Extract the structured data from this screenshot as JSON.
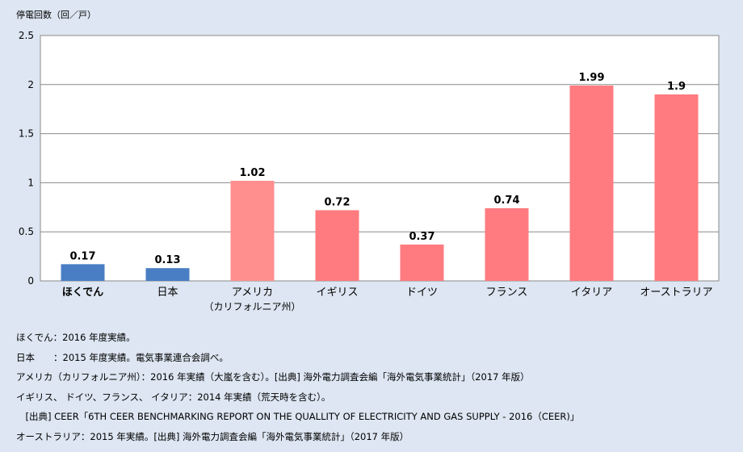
{
  "chart_data": {
    "type": "bar",
    "ylabel": "停電回数（回／戸）",
    "ylim": [
      0,
      2.5
    ],
    "yticks": [
      "0",
      "0.5",
      "1",
      "1.5",
      "2",
      "2.5"
    ],
    "grid": true,
    "categories": [
      "ほくでん",
      "日本",
      "アメリカ",
      "イギリス",
      "ドイツ",
      "フランス",
      "イタリア",
      "オーストラリア"
    ],
    "category_sublabels": [
      "",
      "",
      "（カリフォルニア州）",
      "",
      "",
      "",
      "",
      ""
    ],
    "values": [
      0.17,
      0.13,
      1.02,
      0.72,
      0.37,
      0.74,
      1.99,
      1.9
    ],
    "value_labels": [
      "0.17",
      "0.13",
      "1.02",
      "0.72",
      "0.37",
      "0.74",
      "1.99",
      "1.9"
    ],
    "colors": [
      "#4a7ec4",
      "#4a7ec4",
      "#ff8f8f",
      "#ff7b7f",
      "#ff7b7f",
      "#ff7b7f",
      "#ff7b7f",
      "#ff7b7f"
    ]
  },
  "notes": [
    "ほくでん：2016 年度実績。",
    "日本　　：2015 年度実績。電気事業連合会調べ。",
    "アメリカ（カリフォルニア州）：2016 年実績（大嵐を含む）。[出典] 海外電力調査会編「海外電気事業統計」（2017 年版）",
    "イギリス、 ドイツ、フランス、 イタリア：2014 年実績（荒天時を含む）。",
    "　[出典] CEER「6TH CEER BENCHMARKING REPORT ON THE QUALLITY OF ELECTRICITY AND GAS SUPPLY - 2016（CEER)」",
    "オーストラリア：2015 年実績。[出典] 海外電力調査会編「海外電気事業統計」（2017 年版）"
  ]
}
